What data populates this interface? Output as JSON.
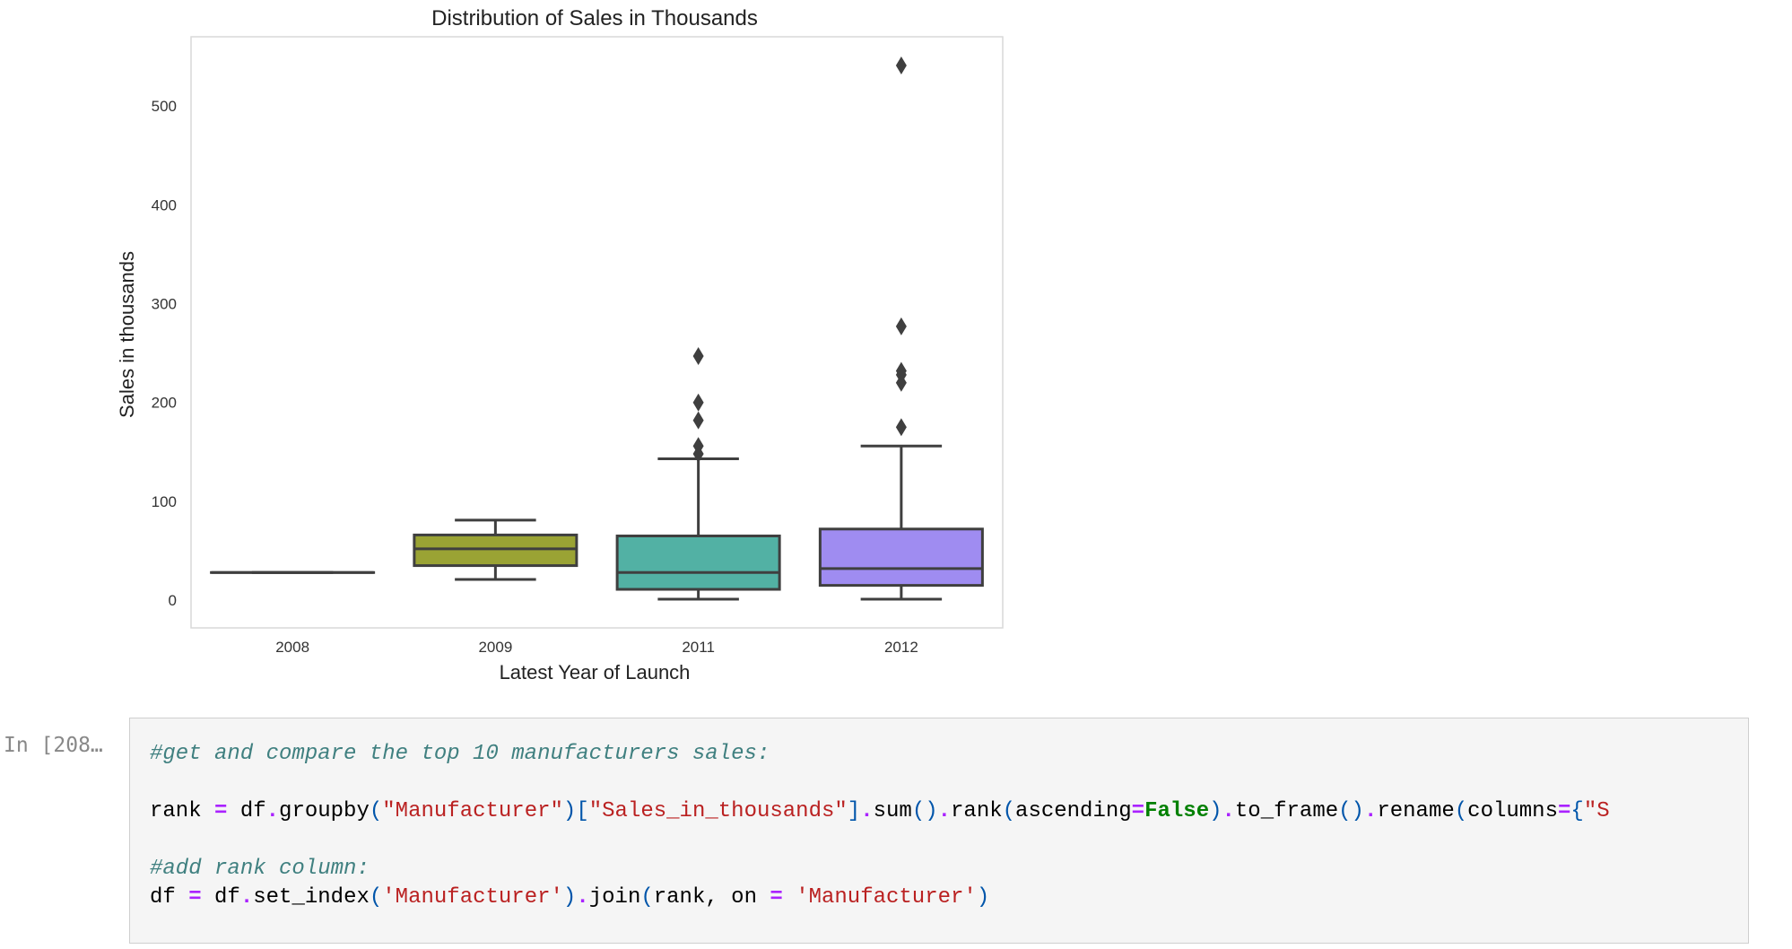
{
  "chart_data": {
    "type": "box",
    "title": "Distribution of Sales in Thousands",
    "xlabel": "Latest Year of Launch",
    "ylabel": "Sales in thousands",
    "ylim": [
      -28,
      570
    ],
    "yticks": [
      0,
      100,
      200,
      300,
      400,
      500
    ],
    "grid": true,
    "categories": [
      "2008",
      "2009",
      "2011",
      "2012"
    ],
    "boxes": [
      {
        "category": "2008",
        "whisker_low": 28,
        "q1": 28,
        "median": 28,
        "q3": 28,
        "whisker_high": 28,
        "outliers": [],
        "color": "#5d6b7d"
      },
      {
        "category": "2009",
        "whisker_low": 21,
        "q1": 35,
        "median": 52,
        "q3": 66,
        "whisker_high": 81,
        "outliers": [],
        "color": "#9aa334"
      },
      {
        "category": "2011",
        "whisker_low": 1,
        "q1": 11,
        "median": 28,
        "q3": 65,
        "whisker_high": 143,
        "outliers": [
          148,
          156,
          182,
          200,
          247
        ],
        "color": "#52b1a4"
      },
      {
        "category": "2012",
        "whisker_low": 1,
        "q1": 15,
        "median": 32,
        "q3": 72,
        "whisker_high": 156,
        "outliers": [
          175,
          220,
          228,
          232,
          277,
          541
        ],
        "color": "#9f8cf1"
      }
    ]
  },
  "cell": {
    "prompt": "In [208…",
    "lines": [
      [
        {
          "t": "#get and compare the top 10 manufacturers sales:",
          "c": "cm"
        }
      ],
      [],
      [
        {
          "t": "rank ",
          "c": ""
        },
        {
          "t": "=",
          "c": "op"
        },
        {
          "t": " df",
          "c": ""
        },
        {
          "t": ".",
          "c": "op"
        },
        {
          "t": "groupby",
          "c": ""
        },
        {
          "t": "(",
          "c": "pu"
        },
        {
          "t": "\"Manufacturer\"",
          "c": "st"
        },
        {
          "t": ")[",
          "c": "pu"
        },
        {
          "t": "\"Sales_in_thousands\"",
          "c": "st"
        },
        {
          "t": "]",
          "c": "pu"
        },
        {
          "t": ".",
          "c": "op"
        },
        {
          "t": "sum",
          "c": ""
        },
        {
          "t": "()",
          "c": "pu"
        },
        {
          "t": ".",
          "c": "op"
        },
        {
          "t": "rank",
          "c": ""
        },
        {
          "t": "(",
          "c": "pu"
        },
        {
          "t": "ascending",
          "c": ""
        },
        {
          "t": "=",
          "c": "op"
        },
        {
          "t": "False",
          "c": "kw"
        },
        {
          "t": ")",
          "c": "pu"
        },
        {
          "t": ".",
          "c": "op"
        },
        {
          "t": "to_frame",
          "c": ""
        },
        {
          "t": "()",
          "c": "pu"
        },
        {
          "t": ".",
          "c": "op"
        },
        {
          "t": "rename",
          "c": ""
        },
        {
          "t": "(",
          "c": "pu"
        },
        {
          "t": "columns",
          "c": ""
        },
        {
          "t": "=",
          "c": "op"
        },
        {
          "t": "{",
          "c": "pu"
        },
        {
          "t": "\"S",
          "c": "st"
        }
      ],
      [],
      [
        {
          "t": "#add rank column:",
          "c": "cm"
        }
      ],
      [
        {
          "t": "df ",
          "c": ""
        },
        {
          "t": "=",
          "c": "op"
        },
        {
          "t": " df",
          "c": ""
        },
        {
          "t": ".",
          "c": "op"
        },
        {
          "t": "set_index",
          "c": ""
        },
        {
          "t": "(",
          "c": "pu"
        },
        {
          "t": "'Manufacturer'",
          "c": "st"
        },
        {
          "t": ")",
          "c": "pu"
        },
        {
          "t": ".",
          "c": "op"
        },
        {
          "t": "join",
          "c": ""
        },
        {
          "t": "(",
          "c": "pu"
        },
        {
          "t": "rank, on ",
          "c": ""
        },
        {
          "t": "=",
          "c": "op"
        },
        {
          "t": " ",
          "c": ""
        },
        {
          "t": "'Manufacturer'",
          "c": "st"
        },
        {
          "t": ")",
          "c": "pu"
        }
      ]
    ]
  }
}
